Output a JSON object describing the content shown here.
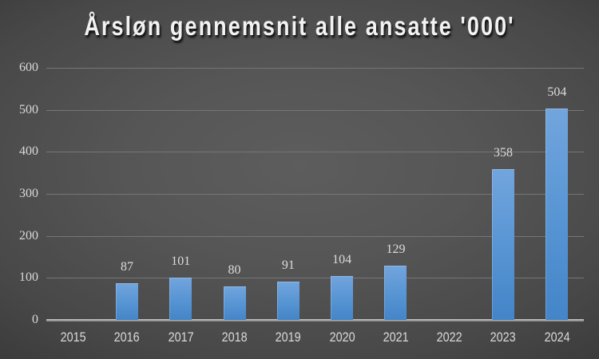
{
  "title": "Årsløn gennemsnit alle ansatte '000'",
  "colors": {
    "background_center": "#5d5d5d",
    "background_edge": "#1a1a1a",
    "gridline": "#767676",
    "axis_line": "#b5b5b5",
    "tick_label": "#d9d9d9",
    "data_label": "#dcdcdc",
    "title": "#f2f2f2",
    "bar_top": "#72a5dd",
    "bar_bottom": "#4385c8"
  },
  "chart_data": {
    "type": "bar",
    "title": "Årsløn gennemsnit alle ansatte '000'",
    "categories": [
      "2015",
      "2016",
      "2017",
      "2018",
      "2019",
      "2020",
      "2021",
      "2022",
      "2023",
      "2024"
    ],
    "values": [
      null,
      87,
      101,
      80,
      91,
      104,
      129,
      null,
      358,
      504
    ],
    "data_labels": [
      "",
      "87",
      "101",
      "80",
      "91",
      "104",
      "129",
      "",
      "358",
      "504"
    ],
    "xlabel": "",
    "ylabel": "",
    "ylim": [
      0,
      600
    ],
    "yticks": [
      0,
      100,
      200,
      300,
      400,
      500,
      600
    ],
    "grid": true,
    "legend": false,
    "series_color_name": "blue-accent"
  }
}
